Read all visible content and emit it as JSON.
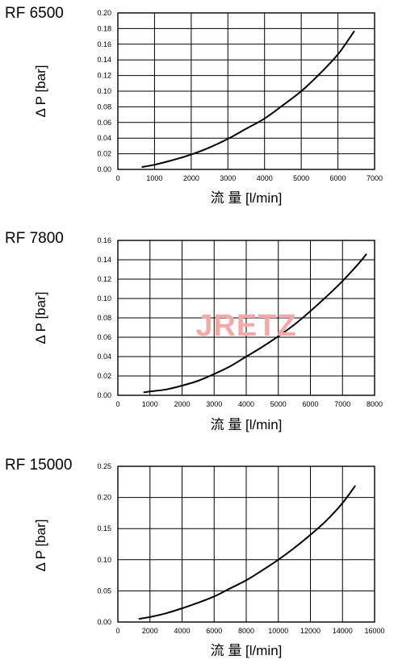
{
  "watermark": "JRETZ",
  "chart_data": [
    {
      "type": "line",
      "title": "RF 6500",
      "ylabel": "Δ P [bar]",
      "xlabel": "流 量 [l/min]",
      "xlim": [
        0,
        7000
      ],
      "ylim": [
        0,
        0.2
      ],
      "xticks": [
        0,
        1000,
        2000,
        3000,
        4000,
        5000,
        6000,
        7000
      ],
      "xtick_labels": [
        "0",
        "1000",
        "2000",
        "3000",
        "4000",
        "5000",
        "6000",
        "7000"
      ],
      "yticks": [
        0,
        0.02,
        0.04,
        0.06,
        0.08,
        0.1,
        0.12,
        0.14,
        0.16,
        0.18,
        0.2
      ],
      "ytick_labels": [
        "0.00",
        "0.02",
        "0.04",
        "0.06",
        "0.08",
        "0.10",
        "0.12",
        "0.14",
        "0.16",
        "0.18",
        "0.20"
      ],
      "grid": true,
      "series": [
        {
          "x": [
            650,
            1000,
            1500,
            2000,
            2500,
            3000,
            3500,
            4000,
            4500,
            5000,
            5500,
            6000,
            6450
          ],
          "y": [
            0.003,
            0.006,
            0.012,
            0.019,
            0.028,
            0.039,
            0.052,
            0.065,
            0.082,
            0.1,
            0.122,
            0.147,
            0.177
          ]
        }
      ]
    },
    {
      "type": "line",
      "title": "RF 7800",
      "ylabel": "Δ P [bar]",
      "xlabel": "流 量 [l/min]",
      "xlim": [
        0,
        8000
      ],
      "ylim": [
        0,
        0.16
      ],
      "xticks": [
        0,
        1000,
        2000,
        3000,
        4000,
        5000,
        6000,
        7000,
        8000
      ],
      "xtick_labels": [
        "0",
        "1000",
        "2000",
        "3000",
        "4000",
        "5000",
        "6000",
        "7000",
        "8000"
      ],
      "yticks": [
        0,
        0.02,
        0.04,
        0.06,
        0.08,
        0.1,
        0.12,
        0.14,
        0.16
      ],
      "ytick_labels": [
        "0.00",
        "0.02",
        "0.04",
        "0.06",
        "0.08",
        "0.10",
        "0.12",
        "0.14",
        "0.16"
      ],
      "grid": true,
      "series": [
        {
          "x": [
            800,
            1000,
            1500,
            2000,
            2500,
            3000,
            3500,
            4000,
            4500,
            5000,
            5500,
            6000,
            6500,
            7000,
            7500,
            7750
          ],
          "y": [
            0.003,
            0.004,
            0.006,
            0.01,
            0.015,
            0.022,
            0.03,
            0.04,
            0.05,
            0.061,
            0.073,
            0.087,
            0.102,
            0.118,
            0.136,
            0.146
          ]
        }
      ]
    },
    {
      "type": "line",
      "title": "RF 15000",
      "ylabel": "Δ P [bar]",
      "xlabel": "流 量 [l/min]",
      "xlim": [
        0,
        16000
      ],
      "ylim": [
        0,
        0.25
      ],
      "xticks": [
        0,
        2000,
        4000,
        6000,
        8000,
        10000,
        12000,
        14000,
        16000
      ],
      "xtick_labels": [
        "0",
        "2000",
        "4000",
        "6000",
        "8000",
        "10000",
        "12000",
        "14000",
        "16000"
      ],
      "yticks": [
        0,
        0.05,
        0.1,
        0.15,
        0.2,
        0.25
      ],
      "ytick_labels": [
        "0.00",
        "0.05",
        "0.10",
        "0.15",
        "0.20",
        "0.25"
      ],
      "grid": true,
      "series": [
        {
          "x": [
            1300,
            2000,
            3000,
            4000,
            5000,
            6000,
            7000,
            8000,
            9000,
            10000,
            11000,
            12000,
            13000,
            14000,
            14800
          ],
          "y": [
            0.005,
            0.008,
            0.014,
            0.022,
            0.031,
            0.041,
            0.054,
            0.067,
            0.083,
            0.1,
            0.119,
            0.14,
            0.163,
            0.191,
            0.219
          ]
        }
      ]
    }
  ]
}
